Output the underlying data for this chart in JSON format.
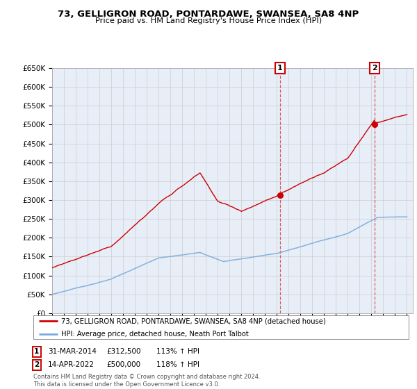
{
  "title": "73, GELLIGRON ROAD, PONTARDAWE, SWANSEA, SA8 4NP",
  "subtitle": "Price paid vs. HM Land Registry's House Price Index (HPI)",
  "ylim": [
    0,
    650000
  ],
  "yticks": [
    0,
    50000,
    100000,
    150000,
    200000,
    250000,
    300000,
    350000,
    400000,
    450000,
    500000,
    550000,
    600000,
    650000
  ],
  "ytick_labels": [
    "£0",
    "£50K",
    "£100K",
    "£150K",
    "£200K",
    "£250K",
    "£300K",
    "£350K",
    "£400K",
    "£450K",
    "£500K",
    "£550K",
    "£600K",
    "£650K"
  ],
  "xmin": 1995,
  "xmax": 2025,
  "legend_line1": "73, GELLIGRON ROAD, PONTARDAWE, SWANSEA, SA8 4NP (detached house)",
  "legend_line2": "HPI: Average price, detached house, Neath Port Talbot",
  "line1_color": "#cc0000",
  "line2_color": "#7aaadd",
  "point1_year": 2014.25,
  "point1_value": 312500,
  "point2_year": 2022.29,
  "point2_value": 500000,
  "footer": "Contains HM Land Registry data © Crown copyright and database right 2024.\nThis data is licensed under the Open Government Licence v3.0.",
  "bg_color": "#ffffff",
  "grid_color": "#cccccc",
  "plot_bg_color": "#e8eef8"
}
